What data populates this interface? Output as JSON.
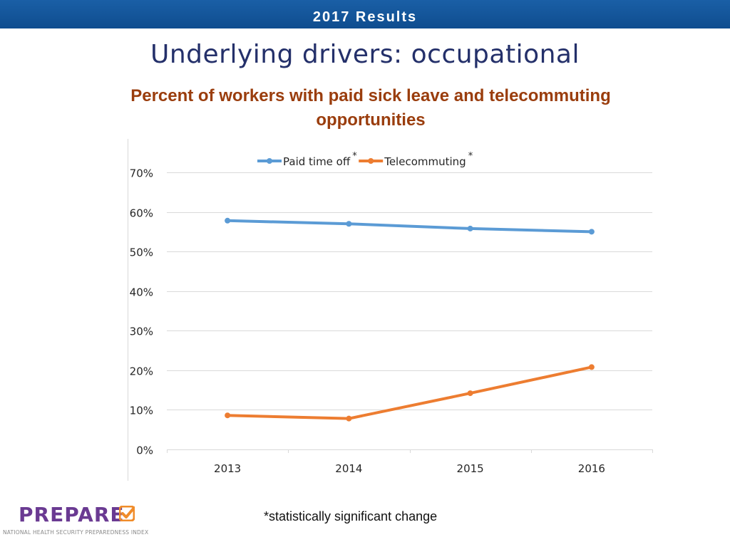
{
  "header": {
    "bar_title": "2017 Results"
  },
  "slide": {
    "title": "Underlying drivers: occupational",
    "chart_heading_line1": "Percent of workers with paid sick leave and telecommuting",
    "chart_heading_line2": "opportunities"
  },
  "footnote": "*statistically significant change",
  "logo": {
    "word": "PREPARE",
    "subtitle": "NATIONAL HEALTH SECURITY PREPAREDNESS INDEX",
    "word_color": "#6a3a92",
    "check_color": "#f08c2a"
  },
  "colors": {
    "bar": "#155799",
    "title": "#24306a",
    "heading": "#9a3d0d",
    "series_blue": "#5b9bd5",
    "series_orange": "#ed7d31",
    "grid": "#d9d9d9"
  },
  "chart_data": {
    "type": "line",
    "title": "Percent of workers with paid sick leave and telecommuting opportunities",
    "categories": [
      "2013",
      "2014",
      "2015",
      "2016"
    ],
    "series": [
      {
        "name": "Paid time off",
        "marker": "*",
        "color": "#5b9bd5",
        "values": [
          0.578,
          0.57,
          0.558,
          0.55
        ]
      },
      {
        "name": "Telecommuting",
        "marker": "*",
        "color": "#ed7d31",
        "values": [
          0.086,
          0.078,
          0.142,
          0.208
        ]
      }
    ],
    "ylim": [
      0,
      0.7
    ],
    "yticks": [
      0,
      0.1,
      0.2,
      0.3,
      0.4,
      0.5,
      0.6,
      0.7
    ],
    "ytick_labels": [
      "0%",
      "10%",
      "20%",
      "30%",
      "40%",
      "50%",
      "60%",
      "70%"
    ],
    "xlabel": "",
    "ylabel": "",
    "grid": true,
    "legend": "top-center"
  }
}
